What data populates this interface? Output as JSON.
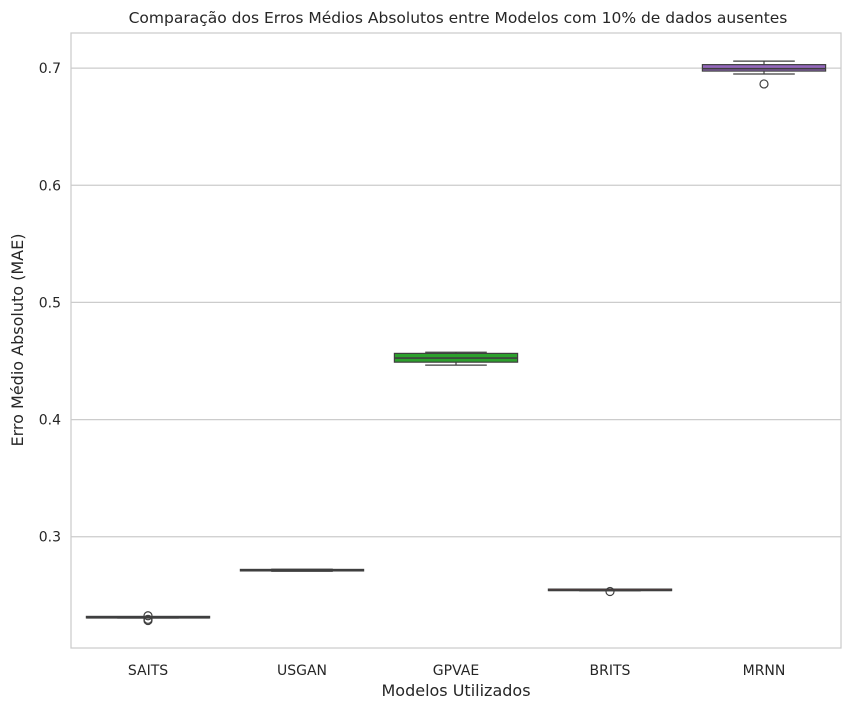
{
  "chart_data": {
    "type": "box",
    "title": "Comparação dos Erros Médios Absolutos entre Modelos com 10% de dados ausentes",
    "xlabel": "Modelos Utilizados",
    "ylabel": "Erro Médio Absoluto (MAE)",
    "ylim": [
      0.205,
      0.73
    ],
    "yticks": [
      0.3,
      0.4,
      0.5,
      0.6,
      0.7
    ],
    "ytick_labels": [
      "0.3",
      "0.4",
      "0.5",
      "0.6",
      "0.7"
    ],
    "grid": true,
    "categories": [
      "SAITS",
      "USGAN",
      "GPVAE",
      "BRITS",
      "MRNN"
    ],
    "boxes": [
      {
        "name": "SAITS",
        "color": "#1f77b4",
        "whisker_low": 0.2306,
        "q1": 0.2307,
        "median": 0.2308,
        "q3": 0.2309,
        "whisker_high": 0.231,
        "outliers": [
          0.2285,
          0.2295,
          0.2325
        ]
      },
      {
        "name": "USGAN",
        "color": "#ff7f0e",
        "whisker_low": 0.2705,
        "q1": 0.2708,
        "median": 0.2711,
        "q3": 0.2714,
        "whisker_high": 0.2722,
        "outliers": []
      },
      {
        "name": "GPVAE",
        "color": "#2ca02c",
        "whisker_low": 0.4465,
        "q1": 0.449,
        "median": 0.4525,
        "q3": 0.4565,
        "whisker_high": 0.4575,
        "outliers": []
      },
      {
        "name": "BRITS",
        "color": "#d62728",
        "whisker_low": 0.2538,
        "q1": 0.254,
        "median": 0.2542,
        "q3": 0.2545,
        "whisker_high": 0.2547,
        "outliers": [
          0.2532
        ]
      },
      {
        "name": "MRNN",
        "color": "#9467bd",
        "whisker_low": 0.695,
        "q1": 0.6975,
        "median": 0.6995,
        "q3": 0.703,
        "whisker_high": 0.706,
        "outliers": [
          0.6865
        ]
      }
    ]
  }
}
